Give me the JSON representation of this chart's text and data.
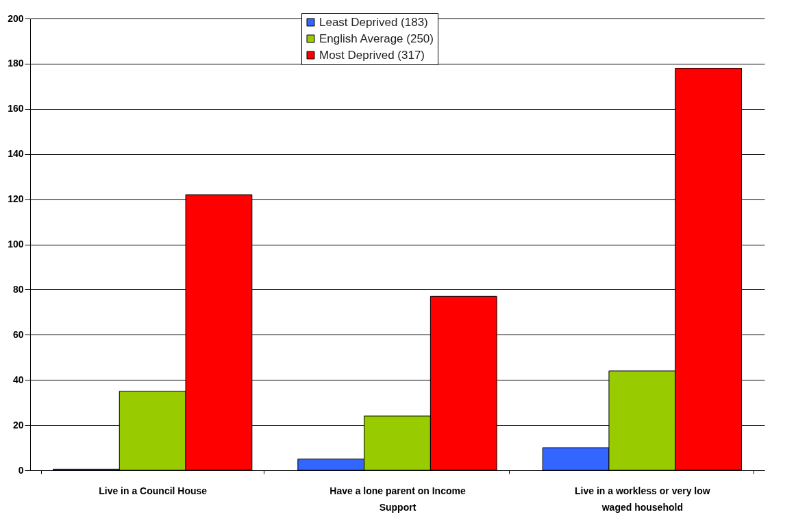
{
  "chart_data": {
    "type": "bar",
    "categories": [
      "Live in a Council House",
      "Have a lone parent on Income Support",
      "Live in a workless or very low waged household"
    ],
    "series": [
      {
        "name": "Least Deprived (183)",
        "color": "#3366ff",
        "values": [
          0.5,
          5,
          10
        ]
      },
      {
        "name": "English Average (250)",
        "color": "#99cc00",
        "values": [
          35,
          24,
          44
        ]
      },
      {
        "name": "Most Deprived (317)",
        "color": "#ff0000",
        "values": [
          122,
          77,
          178
        ]
      }
    ],
    "ylim": [
      0,
      200
    ],
    "yticks": [
      0,
      20,
      40,
      60,
      80,
      100,
      120,
      140,
      160,
      180,
      200
    ],
    "grid": "y",
    "legend": "top"
  }
}
